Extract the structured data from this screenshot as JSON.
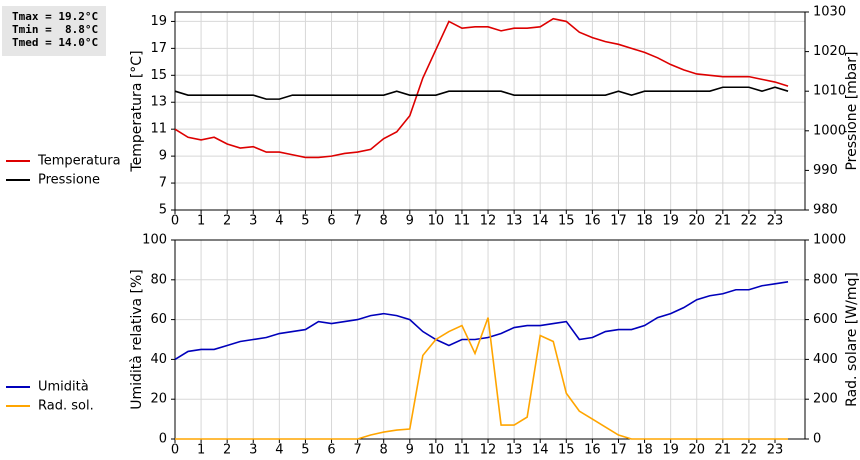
{
  "chart_data": [
    {
      "type": "line",
      "annotations": [
        "Tmax = 19.2°C",
        "Tmin =  8.8°C",
        "Tmed = 14.0°C"
      ],
      "ylabel": "Temperatura [°C]",
      "y2label": "Pressione [mbar]",
      "x": [
        0,
        0.5,
        1,
        1.5,
        2,
        2.5,
        3,
        3.5,
        4,
        4.5,
        5,
        5.5,
        6,
        6.5,
        7,
        7.5,
        8,
        8.5,
        9,
        9.5,
        10,
        10.5,
        11,
        11.5,
        12,
        12.5,
        13,
        13.5,
        14,
        14.5,
        15,
        15.5,
        16,
        16.5,
        17,
        17.5,
        18,
        18.5,
        19,
        19.5,
        20,
        20.5,
        21,
        21.5,
        22,
        22.5,
        23,
        23.5
      ],
      "xlim": [
        0,
        24.15
      ],
      "xticks": [
        0,
        1,
        2,
        3,
        4,
        5,
        6,
        7,
        8,
        9,
        10,
        11,
        12,
        13,
        14,
        15,
        16,
        17,
        18,
        19,
        20,
        21,
        22,
        23
      ],
      "ylim": [
        5,
        19.7
      ],
      "yticks": [
        5,
        7,
        9,
        11,
        13,
        15,
        17,
        19
      ],
      "y2lim": [
        980,
        1030
      ],
      "y2ticks": [
        980,
        990,
        1000,
        1010,
        1020,
        1030
      ],
      "grid": true,
      "series": [
        {
          "name": "Temperatura",
          "color": "#dd0000",
          "axis": "y",
          "values": [
            11.0,
            10.4,
            10.2,
            10.4,
            9.9,
            9.6,
            9.7,
            9.3,
            9.3,
            9.1,
            8.9,
            8.9,
            9.0,
            9.2,
            9.3,
            9.5,
            10.3,
            10.8,
            12.0,
            14.8,
            16.9,
            19.0,
            18.5,
            18.6,
            18.6,
            18.3,
            18.5,
            18.5,
            18.6,
            19.2,
            19.0,
            18.2,
            17.8,
            17.5,
            17.3,
            17.0,
            16.7,
            16.3,
            15.8,
            15.4,
            15.1,
            15.0,
            14.9,
            14.9,
            14.9,
            14.7,
            14.5,
            14.2
          ]
        },
        {
          "name": "Pressione",
          "color": "#000000",
          "axis": "y2",
          "values": [
            1010,
            1009,
            1009,
            1009,
            1009,
            1009,
            1009,
            1008,
            1008,
            1009,
            1009,
            1009,
            1009,
            1009,
            1009,
            1009,
            1009,
            1010,
            1009,
            1009,
            1009,
            1010,
            1010,
            1010,
            1010,
            1010,
            1009,
            1009,
            1009,
            1009,
            1009,
            1009,
            1009,
            1009,
            1010,
            1009,
            1010,
            1010,
            1010,
            1010,
            1010,
            1010,
            1011,
            1011,
            1011,
            1010,
            1011,
            1010
          ]
        }
      ]
    },
    {
      "type": "line",
      "ylabel": "Umidità relativa [%]",
      "y2label": "Rad. solare [W/mq]",
      "x": [
        0,
        0.5,
        1,
        1.5,
        2,
        2.5,
        3,
        3.5,
        4,
        4.5,
        5,
        5.5,
        6,
        6.5,
        7,
        7.5,
        8,
        8.5,
        9,
        9.5,
        10,
        10.5,
        11,
        11.5,
        12,
        12.5,
        13,
        13.5,
        14,
        14.5,
        15,
        15.5,
        16,
        16.5,
        17,
        17.5,
        18,
        18.5,
        19,
        19.5,
        20,
        20.5,
        21,
        21.5,
        22,
        22.5,
        23,
        23.5
      ],
      "xlim": [
        0,
        24.15
      ],
      "xticks": [
        0,
        1,
        2,
        3,
        4,
        5,
        6,
        7,
        8,
        9,
        10,
        11,
        12,
        13,
        14,
        15,
        16,
        17,
        18,
        19,
        20,
        21,
        22,
        23
      ],
      "ylim": [
        0,
        100
      ],
      "yticks": [
        0,
        20,
        40,
        60,
        80,
        100
      ],
      "y2lim": [
        0,
        1000
      ],
      "y2ticks": [
        0,
        200,
        400,
        600,
        800,
        1000
      ],
      "grid": true,
      "series": [
        {
          "name": "Umidità",
          "color": "#0000bb",
          "axis": "y",
          "values": [
            40,
            44,
            45,
            45,
            47,
            49,
            50,
            51,
            53,
            54,
            55,
            59,
            58,
            59,
            60,
            62,
            63,
            62,
            60,
            54,
            50,
            47,
            50,
            50,
            51,
            53,
            56,
            57,
            57,
            58,
            59,
            50,
            51,
            54,
            55,
            55,
            57,
            61,
            63,
            66,
            70,
            72,
            73,
            75,
            75,
            77,
            78,
            79
          ]
        },
        {
          "name": "Rad. sol.",
          "color": "#ffa500",
          "axis": "y2",
          "values": [
            0,
            0,
            0,
            0,
            0,
            0,
            0,
            0,
            0,
            0,
            0,
            0,
            0,
            0,
            0,
            20,
            35,
            45,
            50,
            420,
            500,
            540,
            570,
            430,
            610,
            70,
            70,
            110,
            520,
            490,
            230,
            140,
            100,
            60,
            20,
            0,
            0,
            0,
            0,
            0,
            0,
            0,
            0,
            0,
            0,
            0,
            0,
            0
          ]
        }
      ]
    }
  ]
}
